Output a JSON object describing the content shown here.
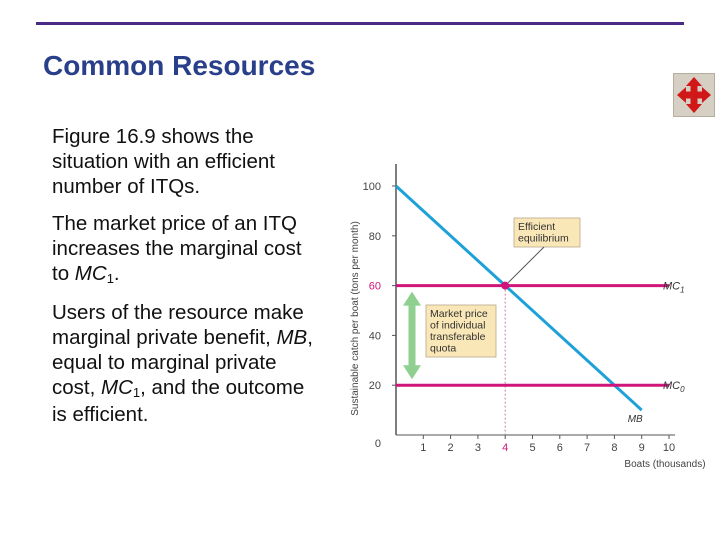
{
  "slide": {
    "title": "Common Resources",
    "paragraphs": [
      {
        "parts": [
          "Figure 16.9 shows the situation with an efficient number of ITQs."
        ]
      },
      {
        "parts": [
          "The market price of an ITQ increases the marginal cost to ",
          {
            "i": "MC"
          },
          {
            "sub": "1"
          },
          "."
        ]
      },
      {
        "parts": [
          "Users of the resource make marginal private benefit, ",
          {
            "i": "MB"
          },
          ", equal to marginal private cost, ",
          {
            "i": "MC"
          },
          {
            "sub": "1"
          },
          ", and the outcome is efficient."
        ]
      }
    ]
  },
  "nav_button": {
    "icon": "four-way-arrows-icon",
    "color": "#d01818"
  },
  "chart_data": {
    "type": "line",
    "xlabel": "Boats (thousands)",
    "ylabel": "Sustainable catch per boat (tons per month)",
    "xlim": [
      0,
      10
    ],
    "ylim": [
      0,
      100
    ],
    "x_ticks": [
      1,
      2,
      3,
      4,
      5,
      6,
      7,
      8,
      9,
      10
    ],
    "y_ticks": [
      0,
      20,
      40,
      60,
      80,
      100
    ],
    "x_highlight_tick": 4,
    "y_highlight_tick": 60,
    "grid": false,
    "series": [
      {
        "name": "MB",
        "x": [
          0,
          9
        ],
        "y": [
          100,
          10
        ],
        "color": "#1da1d8"
      },
      {
        "name": "MC1",
        "x": [
          0,
          10
        ],
        "y": [
          60,
          60
        ],
        "color": "#d0157a"
      },
      {
        "name": "MC0",
        "x": [
          0,
          10
        ],
        "y": [
          20,
          20
        ],
        "color": "#d0157a"
      }
    ],
    "labels": {
      "MB": "MB",
      "MC1": {
        "base": "MC",
        "sub": "1"
      },
      "MC0": {
        "base": "MC",
        "sub": "0"
      }
    },
    "equilibrium": {
      "x": 4,
      "y": 60
    },
    "annotations": [
      {
        "text_lines": [
          "Efficient",
          "equilibrium"
        ],
        "target": {
          "x": 4,
          "y": 60
        }
      },
      {
        "text_lines": [
          "Market price",
          "of individual",
          "transferable",
          "quota"
        ],
        "span": [
          20,
          60
        ]
      }
    ],
    "colors": {
      "axis": "#555555",
      "tick_label": "#444444",
      "highlight_label": "#d0157a",
      "arrow": "#8fcf8f",
      "box_fill": "#f9e7b7"
    }
  }
}
